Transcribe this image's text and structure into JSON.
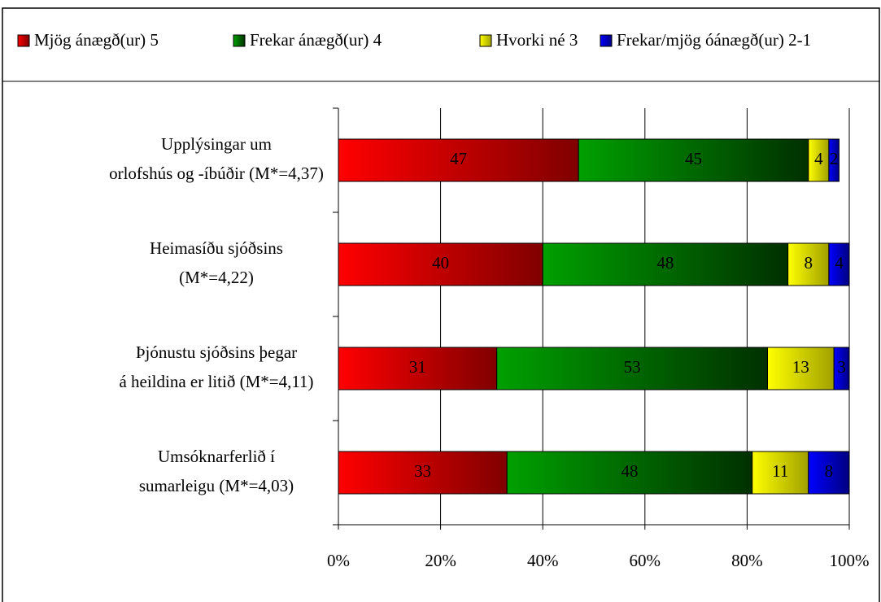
{
  "chart_data": {
    "type": "bar",
    "orientation": "horizontal",
    "stacked": true,
    "categories": [
      [
        "Upplýsingar um",
        "orlofshús og -íbúðir (M*=4,37)"
      ],
      [
        "Heimasíðu sjóðsins",
        "(M*=4,22)"
      ],
      [
        "Þjónustu sjóðsins þegar",
        "á heildina er litið (M*=4,11)"
      ],
      [
        "Umsóknarferlið í",
        "sumarleigu (M*=4,03)"
      ]
    ],
    "series": [
      {
        "name": "Mjög ánægð(ur) 5",
        "color": [
          "#ff0000",
          "#800000"
        ],
        "values": [
          47,
          40,
          31,
          33
        ]
      },
      {
        "name": "Frekar ánægð(ur) 4",
        "color": [
          "#00a000",
          "#003000"
        ],
        "values": [
          45,
          48,
          53,
          48
        ]
      },
      {
        "name": "Hvorki né 3",
        "color": [
          "#ffff00",
          "#a0a000"
        ],
        "values": [
          4,
          8,
          13,
          11
        ]
      },
      {
        "name": "Frekar/mjög óánægð(ur) 2-1",
        "color": [
          "#0000ff",
          "#000080"
        ],
        "values": [
          2,
          4,
          3,
          8
        ]
      }
    ],
    "xlim": [
      0,
      100
    ],
    "xticks": [
      {
        "value": 0,
        "label": "0%"
      },
      {
        "value": 20,
        "label": "20%"
      },
      {
        "value": 40,
        "label": "40%"
      },
      {
        "value": 60,
        "label": "60%"
      },
      {
        "value": 80,
        "label": "80%"
      },
      {
        "value": 100,
        "label": "100%"
      }
    ],
    "grid": true,
    "legend": "top"
  }
}
